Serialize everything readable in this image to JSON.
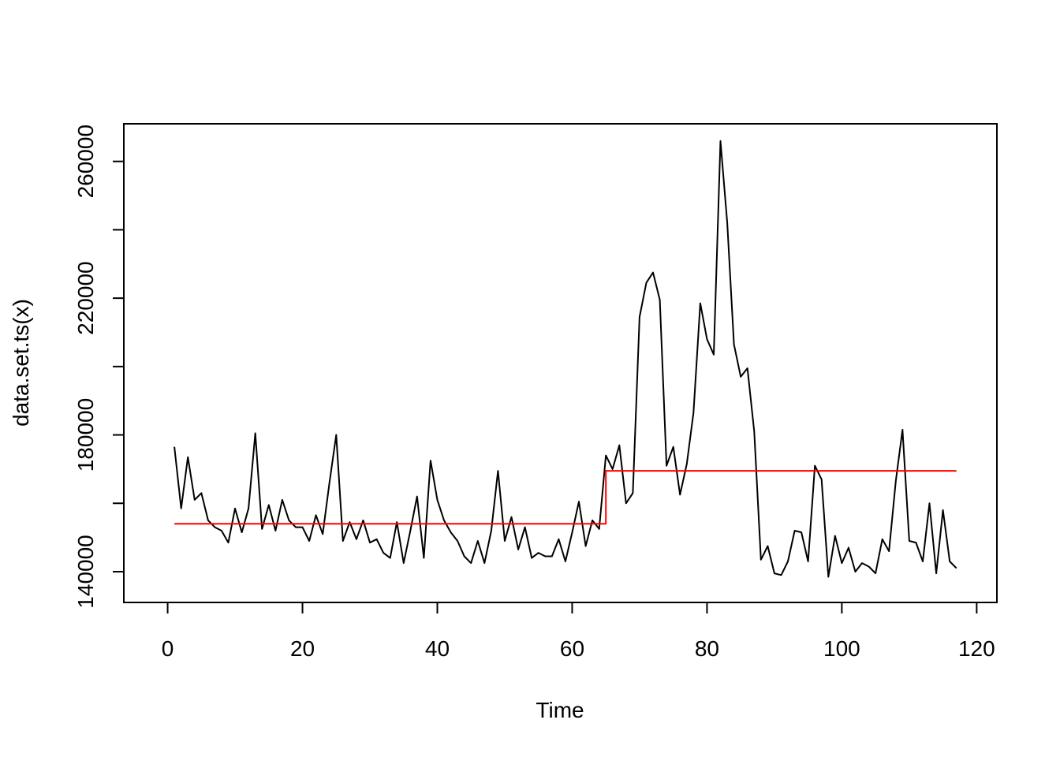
{
  "chart_data": {
    "type": "line",
    "title": "",
    "xlabel": "Time",
    "ylabel": "data.set.ts(x)",
    "xlim": [
      -6.5,
      123
    ],
    "ylim": [
      131000,
      271000
    ],
    "x_ticks": [
      0,
      20,
      40,
      60,
      80,
      100,
      120
    ],
    "y_ticks": [
      140000,
      180000,
      220000,
      260000
    ],
    "y_minor_ticks": [
      160000,
      200000,
      240000
    ],
    "grid": false,
    "legend": "none",
    "series": [
      {
        "color": "#000000",
        "x": [
          1,
          2,
          3,
          4,
          5,
          6,
          7,
          8,
          9,
          10,
          11,
          12,
          13,
          14,
          15,
          16,
          17,
          18,
          19,
          20,
          21,
          22,
          23,
          24,
          25,
          26,
          27,
          28,
          29,
          30,
          31,
          32,
          33,
          34,
          35,
          36,
          37,
          38,
          39,
          40,
          41,
          42,
          43,
          44,
          45,
          46,
          47,
          48,
          49,
          50,
          51,
          52,
          53,
          54,
          55,
          56,
          57,
          58,
          59,
          60,
          61,
          62,
          63,
          64,
          65,
          66,
          67,
          68,
          69,
          70,
          71,
          72,
          73,
          74,
          75,
          76,
          77,
          78,
          79,
          80,
          81,
          82,
          83,
          84,
          85,
          86,
          87,
          88,
          89,
          90,
          91,
          92,
          93,
          94,
          95,
          96,
          97,
          98,
          99,
          100,
          101,
          102,
          103,
          104,
          105,
          106,
          107,
          108,
          109,
          110,
          111,
          112,
          113,
          114,
          115,
          116,
          117
        ],
        "values": [
          176500,
          158500,
          173500,
          161000,
          163000,
          155000,
          153000,
          152000,
          148500,
          158500,
          151500,
          158500,
          180500,
          152500,
          159500,
          152000,
          161000,
          155000,
          153000,
          153000,
          149000,
          156500,
          151000,
          166000,
          180000,
          149000,
          154500,
          149500,
          155000,
          148500,
          149500,
          145500,
          144000,
          154500,
          142500,
          152000,
          162000,
          144000,
          172500,
          161000,
          155000,
          151500,
          149000,
          144500,
          142500,
          149000,
          142500,
          152000,
          169500,
          149000,
          156000,
          146500,
          153000,
          144000,
          145500,
          144500,
          144500,
          149500,
          143000,
          151500,
          160500,
          147500,
          155000,
          152500,
          174000,
          170000,
          177000,
          160000,
          163000,
          214500,
          224500,
          227500,
          219500,
          171000,
          176500,
          162500,
          171500,
          186500,
          218500,
          208000,
          203500,
          266000,
          242000,
          206500,
          197000,
          199500,
          181000,
          143500,
          147500,
          139500,
          139000,
          143000,
          152000,
          151500,
          143000,
          171000,
          167000,
          138500,
          150500,
          142500,
          147000,
          140000,
          142500,
          141500,
          139500,
          149500,
          146000,
          166500,
          181500,
          149000,
          148500,
          143000,
          160000,
          139500,
          158000,
          143000,
          141000
        ]
      },
      {
        "color": "#ff0000",
        "x": [
          1,
          65,
          65,
          117
        ],
        "values": [
          154000,
          154000,
          169500,
          169500
        ]
      }
    ]
  }
}
